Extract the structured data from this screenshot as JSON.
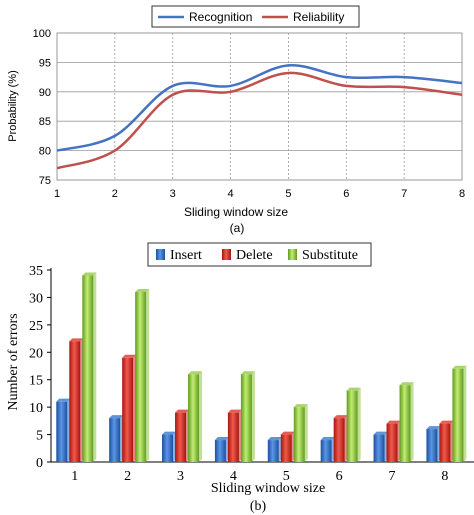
{
  "chart_data": [
    {
      "type": "line",
      "ylabel": "Probability (%)",
      "xlabel": "Sliding window size",
      "caption": "(a)",
      "x": [
        1,
        2,
        3,
        4,
        5,
        6,
        7,
        8
      ],
      "xlim": [
        1,
        8
      ],
      "ylim": [
        75,
        100
      ],
      "yticks": [
        75,
        80,
        85,
        90,
        95,
        100
      ],
      "grid": true,
      "legend_position": "top-center",
      "series": [
        {
          "name": "Recognition",
          "color": "#4472c4",
          "values": [
            80,
            82.5,
            91,
            91,
            94.5,
            92.5,
            92.5,
            91.5
          ]
        },
        {
          "name": "Reliability",
          "color": "#c0504d",
          "values": [
            77,
            80,
            89.5,
            90,
            93.2,
            91,
            90.8,
            89.5
          ]
        }
      ]
    },
    {
      "type": "bar",
      "ylabel": "Number of errors",
      "xlabel": "Sliding window size",
      "caption": "(b)",
      "categories": [
        "1",
        "2",
        "3",
        "4",
        "5",
        "6",
        "7",
        "8"
      ],
      "ylim": [
        0,
        35
      ],
      "yticks": [
        0,
        5,
        10,
        15,
        20,
        25,
        30,
        35
      ],
      "grid": false,
      "legend_position": "top-center",
      "series": [
        {
          "name": "Insert",
          "color": "#2e6fc9",
          "values": [
            11,
            8,
            5,
            4,
            4,
            4,
            5,
            6
          ]
        },
        {
          "name": "Delete",
          "color": "#d8281f",
          "values": [
            22,
            19,
            9,
            9,
            5,
            8,
            7,
            7
          ]
        },
        {
          "name": "Substitute",
          "color": "#8dc63f",
          "values": [
            34,
            31,
            16,
            16,
            10,
            13,
            14,
            17
          ]
        }
      ]
    }
  ]
}
